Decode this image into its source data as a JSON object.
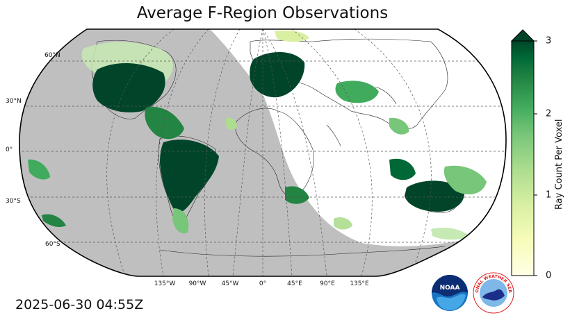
{
  "title": "Average F-Region Observations",
  "timestamp": "2025-06-30 04:55Z",
  "map": {
    "lat_labels": [
      "60°N",
      "30°N",
      "0°",
      "30°S",
      "60°S"
    ],
    "lon_labels": [
      "135°W",
      "90°W",
      "45°W",
      "0°",
      "45°E",
      "90°E",
      "135°E"
    ],
    "land_color": "#ffffff",
    "night_color": "#bfbfbf",
    "grid_style": "dashed",
    "projection": "Robinson"
  },
  "colorbar": {
    "label": "Ray Count Per Voxel",
    "ticks": [
      "0",
      "1",
      "2",
      "3"
    ],
    "min": 0,
    "max": 3,
    "extend": "max",
    "colormap": "YlGn",
    "color_low": "#ffffe5",
    "color_high": "#004529"
  },
  "logos": {
    "noaa": "NOAA",
    "nws": "NATIONAL WEATHER SERVICE"
  }
}
